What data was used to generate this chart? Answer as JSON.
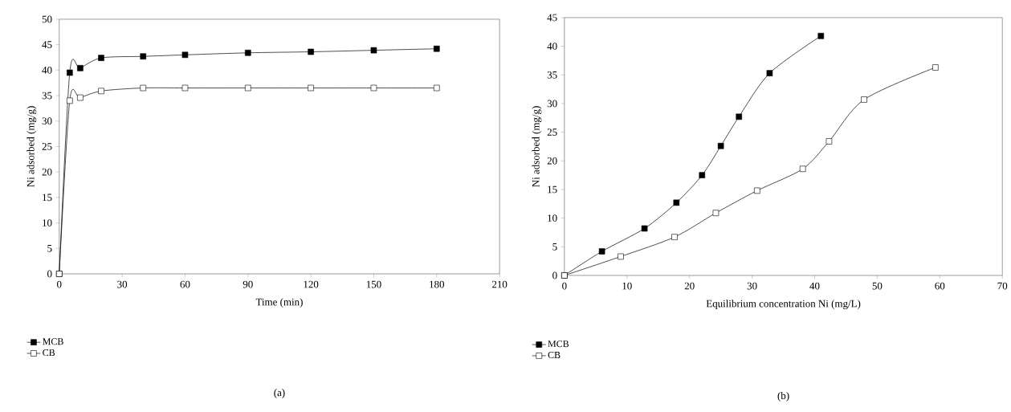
{
  "chart_data": [
    {
      "type": "line",
      "xlabel": "Time (min)",
      "ylabel": "Ni adsorbed (mg/g)",
      "x": [
        0,
        5,
        10,
        20,
        40,
        60,
        90,
        120,
        150,
        180
      ],
      "xlim": [
        0,
        210
      ],
      "xticks": [
        0,
        30,
        60,
        90,
        120,
        150,
        180,
        210
      ],
      "ylim": [
        0,
        50
      ],
      "yticks": [
        0,
        5,
        10,
        15,
        20,
        25,
        30,
        35,
        40,
        45,
        50
      ],
      "marker": "square",
      "legend": "bottom left",
      "annotations": [
        "(a)"
      ],
      "series": [
        {
          "name": "MCB",
          "color": "#000000",
          "values": [
            0,
            39.5,
            40.4,
            42.4,
            42.7,
            43.0,
            43.4,
            43.6,
            43.9,
            44.2
          ]
        },
        {
          "name": "CB",
          "color": "#000000",
          "values": [
            0,
            34.0,
            34.6,
            35.9,
            36.5,
            36.5,
            36.5,
            36.5,
            36.5,
            36.5
          ]
        }
      ]
    },
    {
      "type": "line",
      "xlabel": "Equilibrium concentration Ni (mg/L)",
      "ylabel": "Ni adsorbed (mg/g)",
      "xlim": [
        0,
        70
      ],
      "xticks": [
        0,
        10,
        20,
        30,
        40,
        50,
        60,
        70
      ],
      "ylim": [
        0,
        45
      ],
      "yticks": [
        0,
        5,
        10,
        15,
        20,
        25,
        30,
        35,
        40,
        45
      ],
      "marker": "square",
      "legend": "bottom left",
      "annotations": [
        "(b)"
      ],
      "series": [
        {
          "name": "MCB",
          "color": "#000000",
          "x": [
            0,
            6,
            12.8,
            17.9,
            22,
            25,
            27.9,
            32.8,
            41
          ],
          "values": [
            0,
            4.2,
            8.2,
            12.7,
            17.5,
            22.6,
            27.7,
            35.3,
            41.8
          ]
        },
        {
          "name": "CB",
          "color": "#000000",
          "x": [
            0,
            9,
            17.6,
            24.2,
            30.8,
            38.1,
            42.3,
            47.9,
            59.3
          ],
          "values": [
            0,
            3.3,
            6.7,
            10.9,
            14.8,
            18.6,
            23.4,
            30.7,
            36.3
          ]
        }
      ]
    }
  ]
}
